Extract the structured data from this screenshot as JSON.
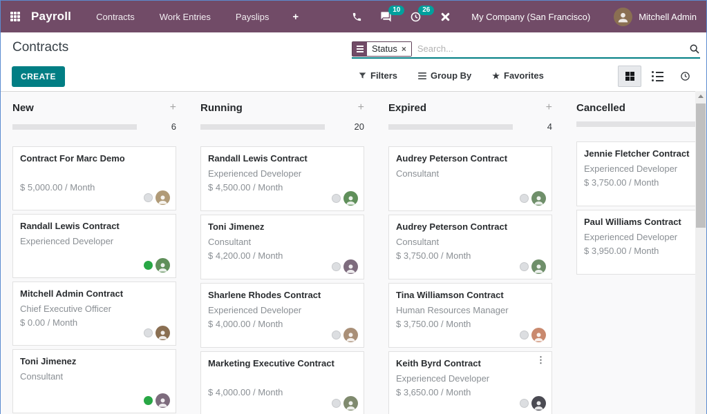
{
  "topbar": {
    "app_name": "Payroll",
    "nav": {
      "contracts": "Contracts",
      "work_entries": "Work Entries",
      "payslips": "Payslips"
    },
    "plus": "+",
    "messages_badge": "10",
    "activities_badge": "26",
    "company": "My Company (San Francisco)",
    "user_name": "Mitchell Admin"
  },
  "control": {
    "title": "Contracts",
    "create_label": "CREATE",
    "facet_label": "Status",
    "facet_close": "×",
    "search_placeholder": "Search...",
    "filters_label": "Filters",
    "group_by_label": "Group By",
    "favorites_label": "Favorites"
  },
  "icons": {
    "favorites_star": "★",
    "kebab": "⋮",
    "kanban_view": "grid-squares",
    "list_view": "list-bullets",
    "activity_view": "clock",
    "search": "magnifier",
    "filters": "funnel",
    "group_by": "bars",
    "facet": "bars"
  },
  "colors": {
    "topbar_bg": "#714B67",
    "badge_teal": "#00A09D",
    "create_button_teal": "#017E84",
    "search_underline_teal": "#017E84",
    "green_activity_dot": "#28A745",
    "kanban_bg": "#f9f9fa"
  },
  "kanban": {
    "columns": [
      {
        "title": "New",
        "plus": "+",
        "count": "6",
        "partial_next_card": true,
        "cards": [
          {
            "title": "Contract For Marc Demo",
            "subtitle": "",
            "salary": "$ 5,000.00 / Month",
            "dot": "gray",
            "avatar": "#b09a77"
          },
          {
            "title": "Randall Lewis Contract",
            "subtitle": "Experienced Developer",
            "salary": "",
            "dot": "green",
            "avatar": "#5f8f5a"
          },
          {
            "title": "Mitchell Admin Contract",
            "subtitle": "Chief Executive Officer",
            "salary": "$ 0.00 / Month",
            "dot": "gray",
            "avatar": "#8a6f52"
          },
          {
            "title": "Toni Jimenez",
            "subtitle": "Consultant",
            "salary": "",
            "dot": "green",
            "avatar": "#7d6b7d"
          }
        ]
      },
      {
        "title": "Running",
        "plus": "+",
        "count": "20",
        "cards": [
          {
            "title": "Randall Lewis Contract",
            "subtitle": "Experienced Developer",
            "salary": "$ 4,500.00 / Month",
            "dot": "gray",
            "avatar": "#5f8f5a"
          },
          {
            "title": "Toni Jimenez",
            "subtitle": "Consultant",
            "salary": "$ 4,200.00 / Month",
            "dot": "gray",
            "avatar": "#7d6b7d"
          },
          {
            "title": "Sharlene Rhodes Contract",
            "subtitle": "Experienced Developer",
            "salary": "$ 4,000.00 / Month",
            "dot": "gray",
            "avatar": "#a98f77"
          },
          {
            "title": "Marketing Executive Contract",
            "subtitle": "",
            "salary": "$ 4,000.00 / Month",
            "dot": "gray",
            "avatar": "#7f8a6e"
          }
        ]
      },
      {
        "title": "Expired",
        "plus": "+",
        "count": "4",
        "cards": [
          {
            "title": "Audrey Peterson Contract",
            "subtitle": "Consultant",
            "salary": "",
            "dot": "gray",
            "avatar": "#6f8f6a"
          },
          {
            "title": "Audrey Peterson Contract",
            "subtitle": "Consultant",
            "salary": "$ 3,750.00 / Month",
            "dot": "gray",
            "avatar": "#6f8f6a"
          },
          {
            "title": "Tina Williamson Contract",
            "subtitle": "Human Resources Manager",
            "salary": "$ 3,750.00 / Month",
            "dot": "gray",
            "avatar": "#c9896e"
          },
          {
            "title": "Keith Byrd Contract",
            "subtitle": "Experienced Developer",
            "salary": "$ 3,650.00 / Month",
            "dot": "gray",
            "avatar": "#4a4a52",
            "menu": true
          }
        ]
      },
      {
        "title": "Cancelled",
        "plus": "+",
        "count": null,
        "cards": [
          {
            "title": "Jennie Fletcher Contract",
            "subtitle": "Experienced Developer",
            "salary": "$ 3,750.00 / Month",
            "dot": null,
            "avatar": null
          },
          {
            "title": "Paul Williams Contract",
            "subtitle": "Experienced Developer",
            "salary": "$ 3,950.00 / Month",
            "dot": null,
            "avatar": null
          }
        ]
      }
    ]
  }
}
